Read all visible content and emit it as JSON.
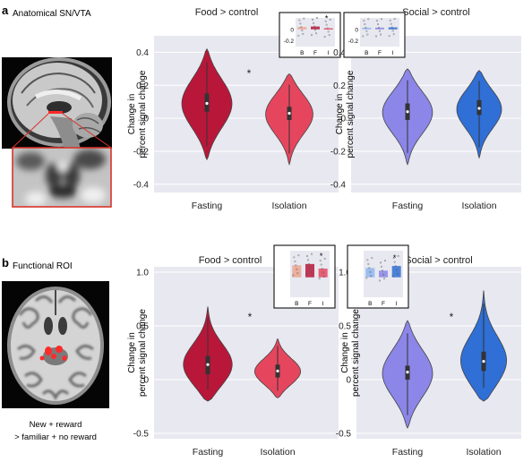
{
  "panels": [
    {
      "letter": "a",
      "roi_label": "Anatomical SN/VTA"
    },
    {
      "letter": "b",
      "roi_label": "Functional ROI",
      "roi_caption": [
        "New + reward",
        "> familiar + no reward"
      ]
    }
  ],
  "colors": {
    "fasting_food": "#b8173a",
    "isolation_food": "#e5465e",
    "fasting_social": "#8b86e8",
    "isolation_social": "#2f6fd6",
    "plot_bg": "#e8e8f0",
    "roi_box": "#d8332b",
    "roi_blob": "#ff2a2a",
    "inset_baseline_food": "#eca58f",
    "inset_baseline_social": "#8fb6f0"
  },
  "chart_data": [
    {
      "type": "violin",
      "panel": "a",
      "title": "Food > control",
      "ylabel": "Change in percent signal change",
      "ylim": [
        -0.45,
        0.5
      ],
      "yticks": [
        "0.4",
        "0.2",
        "0",
        "-0.2",
        "-0.4"
      ],
      "yticks_values": [
        0.4,
        0.2,
        0,
        -0.2,
        -0.4
      ],
      "categories": [
        "Fasting",
        "Isolation"
      ],
      "series": [
        {
          "range": [
            -0.25,
            0.42
          ],
          "mode": 0.09,
          "median": 0.09,
          "q1": 0.04,
          "q3": 0.15,
          "width": 1.0
        },
        {
          "range": [
            -0.28,
            0.27
          ],
          "mode": 0.03,
          "median": 0.03,
          "q1": -0.01,
          "q3": 0.07,
          "width": 0.95
        }
      ],
      "significance": "*",
      "inset": {
        "yticks": [
          "0",
          "-0.2"
        ],
        "yticks_values": [
          0,
          -0.2
        ],
        "ylim": [
          -0.3,
          0.2
        ],
        "categories": [
          "B",
          "F",
          "I"
        ],
        "bars": [
          0.04,
          0.05,
          0.02
        ],
        "significance": "*"
      }
    },
    {
      "type": "violin",
      "panel": "a",
      "title": "Social > control",
      "ylabel": "Change in percent signal change",
      "ylim": [
        -0.45,
        0.5
      ],
      "yticks": [
        "0.4",
        "0.2",
        "0",
        "-0.2",
        "-0.4"
      ],
      "yticks_values": [
        0.4,
        0.2,
        0,
        -0.2,
        -0.4
      ],
      "categories": [
        "Fasting",
        "Isolation"
      ],
      "series": [
        {
          "range": [
            -0.28,
            0.3
          ],
          "mode": 0.04,
          "median": 0.04,
          "q1": -0.01,
          "q3": 0.09,
          "width": 1.0
        },
        {
          "range": [
            -0.24,
            0.29
          ],
          "mode": 0.06,
          "median": 0.06,
          "q1": 0.02,
          "q3": 0.11,
          "width": 0.9
        }
      ],
      "significance": "",
      "inset": {
        "yticks": [
          "0",
          "-0.2"
        ],
        "yticks_values": [
          0,
          -0.2
        ],
        "ylim": [
          -0.3,
          0.2
        ],
        "categories": [
          "B",
          "F",
          "I"
        ],
        "bars": [
          0.03,
          0.03,
          0.035
        ],
        "significance": ""
      }
    },
    {
      "type": "violin",
      "panel": "b",
      "title": "Food > control",
      "ylabel": "Change in percent signal change",
      "ylim": [
        -0.55,
        1.05
      ],
      "yticks": [
        "1.0",
        "0.5",
        "0",
        "-0.5"
      ],
      "yticks_values": [
        1.0,
        0.5,
        0,
        -0.5
      ],
      "categories": [
        "Fasting",
        "Isolation"
      ],
      "series": [
        {
          "range": [
            -0.2,
            0.68
          ],
          "mode": 0.12,
          "median": 0.14,
          "q1": 0.05,
          "q3": 0.22,
          "width": 1.0
        },
        {
          "range": [
            -0.17,
            0.38
          ],
          "mode": 0.07,
          "median": 0.08,
          "q1": 0.02,
          "q3": 0.14,
          "width": 0.92
        }
      ],
      "significance": "*",
      "inset": {
        "yticks": [],
        "yticks_values": [],
        "ylim": [
          -0.3,
          0.4
        ],
        "categories": [
          "B",
          "F",
          "I"
        ],
        "bars": [
          0.18,
          0.2,
          0.13
        ],
        "significance": "*"
      }
    },
    {
      "type": "violin",
      "panel": "b",
      "title": "Social > control",
      "ylabel": "Change in percent signal change",
      "ylim": [
        -0.55,
        1.05
      ],
      "yticks": [
        "1.0",
        "0.5",
        "0",
        "-0.5"
      ],
      "yticks_values": [
        1.0,
        0.5,
        0,
        -0.5
      ],
      "categories": [
        "Fasting",
        "Isolation"
      ],
      "series": [
        {
          "range": [
            -0.45,
            0.55
          ],
          "mode": 0.06,
          "median": 0.07,
          "q1": 0.0,
          "q3": 0.13,
          "width": 1.0
        },
        {
          "range": [
            -0.2,
            0.83
          ],
          "mode": 0.15,
          "median": 0.17,
          "q1": 0.08,
          "q3": 0.26,
          "width": 0.95
        }
      ],
      "significance": "*",
      "inset": {
        "yticks": [],
        "yticks_values": [],
        "ylim": [
          -0.3,
          0.4
        ],
        "categories": [
          "B",
          "F",
          "I"
        ],
        "bars": [
          0.14,
          0.1,
          0.17
        ],
        "significance": "*"
      }
    }
  ]
}
